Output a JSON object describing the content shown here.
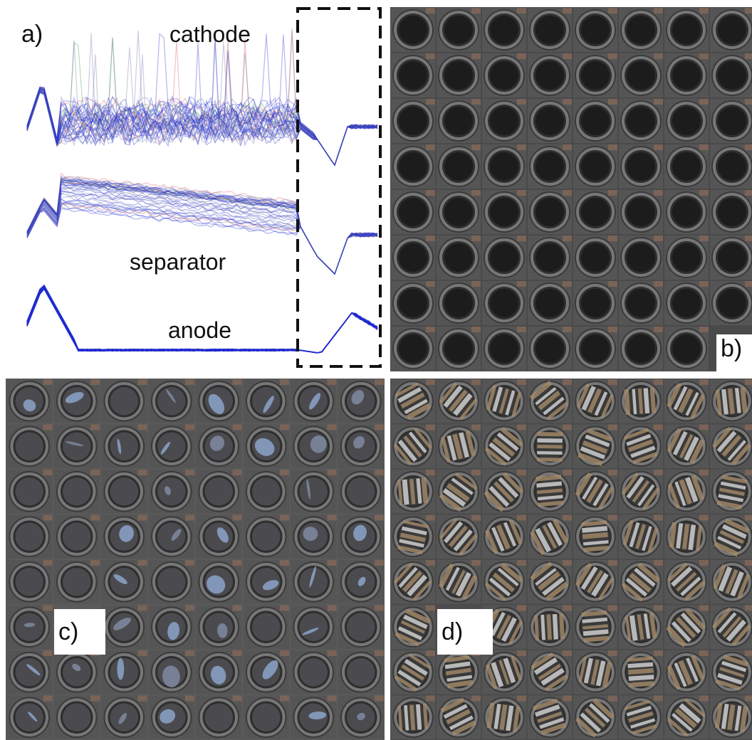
{
  "figure": {
    "panel_a": {
      "label": "a)",
      "traces": {
        "cathode": "cathode",
        "separator": "separator",
        "anode": "anode"
      }
    },
    "panel_b": {
      "label": "b)"
    },
    "panel_c": {
      "label": "c)"
    },
    "panel_d": {
      "label": "d)"
    }
  },
  "colors": {
    "trace_main": "#1f2bd1",
    "trace_faint": "#6b6fa6",
    "trace_red": "#e05050",
    "trace_green": "#3a9a3a",
    "tile_dark": "#1c1c1c",
    "tile_frame": "#6a6a6a",
    "separator_blue": "#8ca3c9",
    "anode_steel": "#b9b9b9"
  },
  "icons": {
    "panel_b_tiles": "cathode-disc-icon",
    "panel_c_tiles": "separator-disc-icon",
    "panel_d_tiles": "anode-disc-icon"
  }
}
